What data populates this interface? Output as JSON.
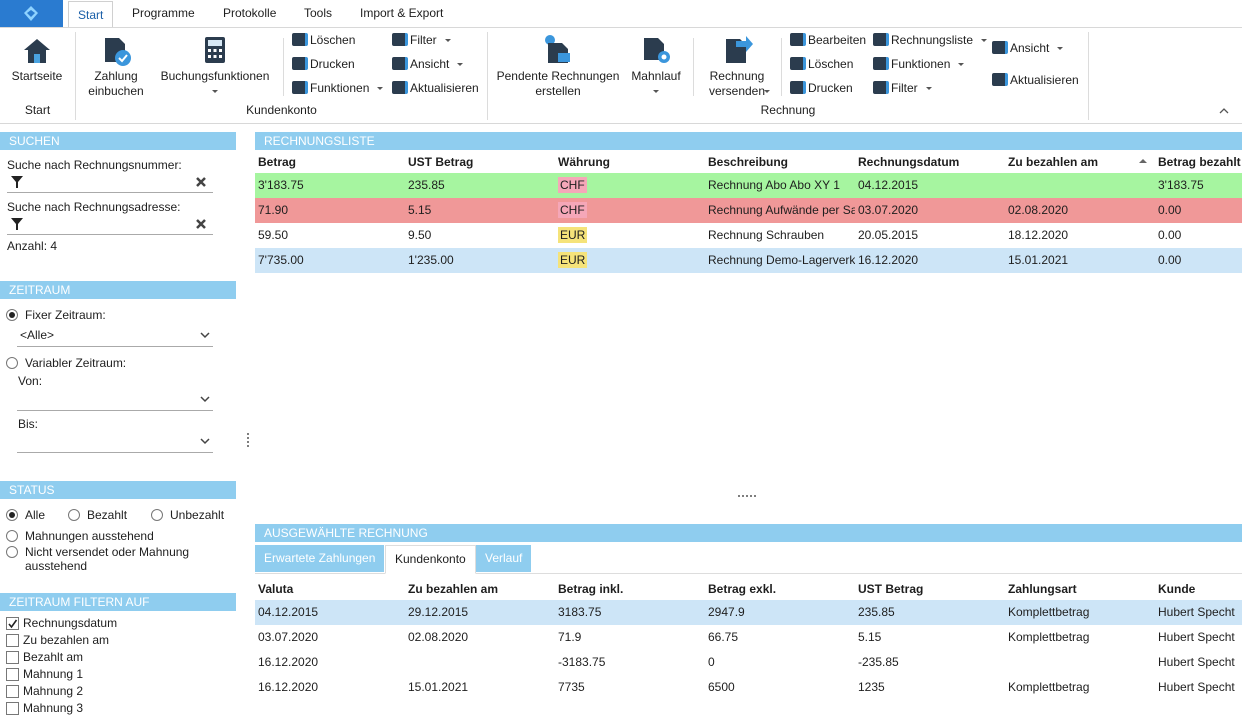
{
  "app_tabs": [
    "Start",
    "Programme",
    "Protokolle",
    "Tools",
    "Import & Export"
  ],
  "ribbon": {
    "groups": [
      "Start",
      "Kundenkonto",
      "Rechnung"
    ],
    "startseite": "Startseite",
    "zahlung_einbuchen": "Zahlung einbuchen",
    "buchungsfunktionen": "Buchungsfunktionen",
    "kundenkonto_col1": [
      "Löschen",
      "Drucken",
      "Funktionen"
    ],
    "kundenkonto_col2": [
      "Filter",
      "Ansicht",
      "Aktualisieren"
    ],
    "pendente": "Pendente Rechnungen erstellen",
    "mahnlauf": "Mahnlauf",
    "rechnung_versenden": "Rechnung versenden",
    "rechnung_col1": [
      "Bearbeiten",
      "Löschen",
      "Drucken"
    ],
    "rechnung_col2": [
      "Rechnungsliste",
      "Funktionen",
      "Filter"
    ],
    "rechnung_col3": [
      "Ansicht",
      "Aktualisieren"
    ]
  },
  "search": {
    "header": "SUCHEN",
    "by_number": "Suche nach Rechnungsnummer:",
    "by_address": "Suche nach Rechnungsadresse:",
    "count": "Anzahl: 4"
  },
  "period": {
    "header": "ZEITRAUM",
    "fixed": "Fixer Zeitraum:",
    "fixed_value": "<Alle>",
    "variable": "Variabler Zeitraum:",
    "from": "Von:",
    "to": "Bis:"
  },
  "status": {
    "header": "STATUS",
    "options": [
      {
        "label": "Alle",
        "selected": true
      },
      {
        "label": "Bezahlt",
        "selected": false
      },
      {
        "label": "Unbezahlt",
        "selected": false
      },
      {
        "label": "Mahnungen ausstehend",
        "selected": false
      },
      {
        "label": "Nicht versendet oder Mahnung ausstehend",
        "selected": false
      }
    ]
  },
  "filter_on": {
    "header": "ZEITRAUM FILTERN AUF",
    "fields": [
      {
        "label": "Rechnungsdatum",
        "checked": true
      },
      {
        "label": "Zu bezahlen am",
        "checked": false
      },
      {
        "label": "Bezahlt am",
        "checked": false
      },
      {
        "label": "Mahnung 1",
        "checked": false
      },
      {
        "label": "Mahnung 2",
        "checked": false
      },
      {
        "label": "Mahnung 3",
        "checked": false
      }
    ]
  },
  "invoice_list": {
    "header": "RECHNUNGSLISTE",
    "columns": [
      "Betrag",
      "UST Betrag",
      "Währung",
      "Beschreibung",
      "Rechnungsdatum",
      "Zu bezahlen am",
      "Betrag bezahlt"
    ],
    "rows": [
      {
        "color": "#a6f5a0",
        "currency_color": "#f5a7b8",
        "cells": [
          "3'183.75",
          "235.85",
          "CHF",
          "Rechnung Abo Abo XY 1",
          "04.12.2015",
          null,
          "3'183.75"
        ]
      },
      {
        "color": "#f09898",
        "currency_color": "#f5a7b8",
        "cells": [
          "71.90",
          "5.15",
          "CHF",
          "Rechnung Aufwände per Sa",
          "03.07.2020",
          "02.08.2020",
          "0.00"
        ]
      },
      {
        "color": "#ffffff",
        "currency_color": "#f5e37a",
        "cells": [
          "59.50",
          "9.50",
          "EUR",
          "Rechnung Schrauben",
          "20.05.2015",
          "18.12.2020",
          "0.00"
        ]
      },
      {
        "color": "#cde5f7",
        "currency_color": "#f5e37a",
        "cells": [
          "7'735.00",
          "1'235.00",
          "EUR",
          "Rechnung Demo-Lagerverk",
          "16.12.2020",
          "15.01.2021",
          "0.00"
        ]
      }
    ]
  },
  "selected_invoice": {
    "header": "AUSGEWÄHLTE RECHNUNG",
    "tabs": [
      {
        "label": "Erwartete Zahlungen",
        "active": false
      },
      {
        "label": "Kundenkonto",
        "active": true
      },
      {
        "label": "Verlauf",
        "active": false
      }
    ],
    "columns": [
      "Valuta",
      "Zu bezahlen am",
      "Betrag inkl.",
      "Betrag exkl.",
      "UST Betrag",
      "Zahlungsart",
      "Kunde"
    ],
    "rows": [
      {
        "color": "#cde5f7",
        "cells": [
          "04.12.2015",
          "29.12.2015",
          "3183.75",
          "2947.9",
          "235.85",
          "Komplettbetrag",
          "Hubert Specht"
        ]
      },
      {
        "color": "#ffffff",
        "cells": [
          "03.07.2020",
          "02.08.2020",
          "71.9",
          "66.75",
          "5.15",
          "Komplettbetrag",
          "Hubert Specht"
        ]
      },
      {
        "color": "#ffffff",
        "cells": [
          "16.12.2020",
          null,
          "-3183.75",
          "0",
          "-235.85",
          null,
          "Hubert Specht"
        ]
      },
      {
        "color": "#ffffff",
        "cells": [
          "16.12.2020",
          "15.01.2021",
          "7735",
          "6500",
          "1235",
          "Komplettbetrag",
          "Hubert Specht"
        ]
      }
    ]
  }
}
